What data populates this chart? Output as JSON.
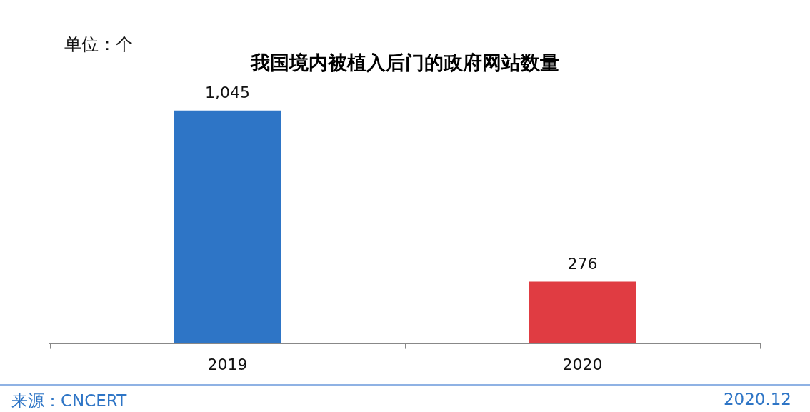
{
  "chart_data": {
    "type": "bar",
    "title": "我国境内被植入后门的政府网站数量",
    "categories": [
      "2019",
      "2020"
    ],
    "values": [
      1045,
      276
    ],
    "colors": [
      "#2e75c6",
      "#e03c42"
    ],
    "value_labels": [
      "1,045",
      "276"
    ],
    "grid": false,
    "legend": false,
    "annotations": [
      "单位：个",
      "来源：CNCERT",
      "2020.12"
    ]
  }
}
